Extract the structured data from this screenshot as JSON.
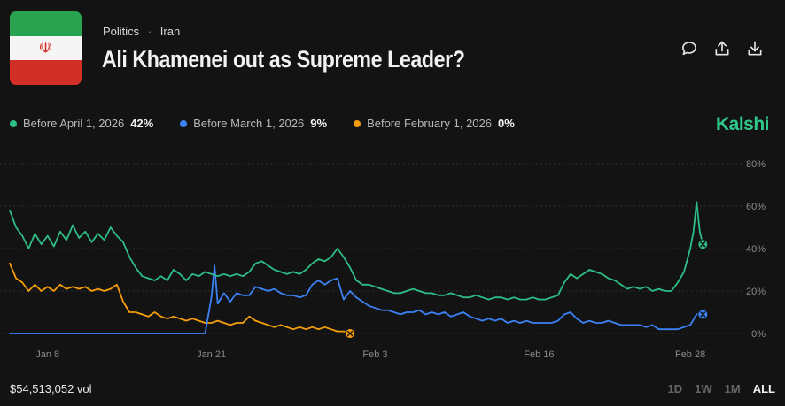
{
  "header": {
    "category": "Politics",
    "subcategory": "Iran",
    "title": "Ali Khamenei out as Supreme Leader?",
    "flag_icon": "iran-flag-icon"
  },
  "actions": [
    {
      "name": "comment-icon"
    },
    {
      "name": "share-icon"
    },
    {
      "name": "download-icon"
    }
  ],
  "legend": [
    {
      "label": "Before April 1, 2026",
      "value": "42%",
      "color": "#2ebd85"
    },
    {
      "label": "Before March 1, 2026",
      "value": "9%",
      "color": "#3b82f6"
    },
    {
      "label": "Before February 1, 2026",
      "value": "0%",
      "color": "#f59e0b"
    }
  ],
  "brand": "Kalshi",
  "footer": {
    "volume": "$54,513,052 vol",
    "ranges": [
      "1D",
      "1W",
      "1M",
      "ALL"
    ],
    "active_range": "ALL"
  },
  "chart_data": {
    "type": "line",
    "xlim": [
      "2026-01-05",
      "2026-03-04"
    ],
    "ylim": [
      0,
      80
    ],
    "y_ticks": [
      0,
      20,
      40,
      60,
      80
    ],
    "y_tick_labels": [
      "0%",
      "20%",
      "40%",
      "60%",
      "80%"
    ],
    "x_ticks": [
      "2026-01-08",
      "2026-01-21",
      "2026-02-03",
      "2026-02-16",
      "2026-02-28"
    ],
    "x_tick_labels": [
      "Jan 8",
      "Jan 21",
      "Feb 3",
      "Feb 16",
      "Feb 28"
    ],
    "grid": "horizontal dotted",
    "series": [
      {
        "name": "Before April 1, 2026",
        "color": "#2ebd85",
        "end_marker": true,
        "points": [
          [
            "2026-01-05T00:00",
            58
          ],
          [
            "2026-01-05T12:00",
            50
          ],
          [
            "2026-01-06T00:00",
            46
          ],
          [
            "2026-01-06T12:00",
            40
          ],
          [
            "2026-01-07T00:00",
            47
          ],
          [
            "2026-01-07T12:00",
            42
          ],
          [
            "2026-01-08T00:00",
            46
          ],
          [
            "2026-01-08T12:00",
            41
          ],
          [
            "2026-01-09T00:00",
            48
          ],
          [
            "2026-01-09T12:00",
            44
          ],
          [
            "2026-01-10T00:00",
            51
          ],
          [
            "2026-01-10T12:00",
            45
          ],
          [
            "2026-01-11T00:00",
            48
          ],
          [
            "2026-01-11T12:00",
            43
          ],
          [
            "2026-01-12T00:00",
            47
          ],
          [
            "2026-01-12T12:00",
            44
          ],
          [
            "2026-01-13T00:00",
            50
          ],
          [
            "2026-01-13T12:00",
            46
          ],
          [
            "2026-01-14T00:00",
            43
          ],
          [
            "2026-01-14T12:00",
            36
          ],
          [
            "2026-01-15T00:00",
            31
          ],
          [
            "2026-01-15T12:00",
            27
          ],
          [
            "2026-01-16T00:00",
            26
          ],
          [
            "2026-01-16T12:00",
            25
          ],
          [
            "2026-01-17T00:00",
            27
          ],
          [
            "2026-01-17T12:00",
            25
          ],
          [
            "2026-01-18T00:00",
            30
          ],
          [
            "2026-01-18T12:00",
            28
          ],
          [
            "2026-01-19T00:00",
            25
          ],
          [
            "2026-01-19T12:00",
            28
          ],
          [
            "2026-01-20T00:00",
            27
          ],
          [
            "2026-01-20T12:00",
            29
          ],
          [
            "2026-01-21T00:00",
            28
          ],
          [
            "2026-01-21T12:00",
            27
          ],
          [
            "2026-01-22T00:00",
            28
          ],
          [
            "2026-01-22T12:00",
            27
          ],
          [
            "2026-01-23T00:00",
            28
          ],
          [
            "2026-01-23T12:00",
            27
          ],
          [
            "2026-01-24T00:00",
            29
          ],
          [
            "2026-01-24T12:00",
            33
          ],
          [
            "2026-01-25T00:00",
            34
          ],
          [
            "2026-01-25T12:00",
            32
          ],
          [
            "2026-01-26T00:00",
            30
          ],
          [
            "2026-01-26T12:00",
            29
          ],
          [
            "2026-01-27T00:00",
            28
          ],
          [
            "2026-01-27T12:00",
            29
          ],
          [
            "2026-01-28T00:00",
            28
          ],
          [
            "2026-01-28T12:00",
            30
          ],
          [
            "2026-01-29T00:00",
            33
          ],
          [
            "2026-01-29T12:00",
            35
          ],
          [
            "2026-01-30T00:00",
            34
          ],
          [
            "2026-01-30T12:00",
            36
          ],
          [
            "2026-01-31T00:00",
            40
          ],
          [
            "2026-01-31T12:00",
            36
          ],
          [
            "2026-02-01T00:00",
            31
          ],
          [
            "2026-02-01T12:00",
            25
          ],
          [
            "2026-02-02T00:00",
            23
          ],
          [
            "2026-02-02T12:00",
            23
          ],
          [
            "2026-02-03T00:00",
            22
          ],
          [
            "2026-02-03T12:00",
            21
          ],
          [
            "2026-02-04T00:00",
            20
          ],
          [
            "2026-02-04T12:00",
            19
          ],
          [
            "2026-02-05T00:00",
            19
          ],
          [
            "2026-02-05T12:00",
            20
          ],
          [
            "2026-02-06T00:00",
            21
          ],
          [
            "2026-02-06T12:00",
            20
          ],
          [
            "2026-02-07T00:00",
            19
          ],
          [
            "2026-02-07T12:00",
            19
          ],
          [
            "2026-02-08T00:00",
            18
          ],
          [
            "2026-02-08T12:00",
            18
          ],
          [
            "2026-02-09T00:00",
            19
          ],
          [
            "2026-02-09T12:00",
            18
          ],
          [
            "2026-02-10T00:00",
            17
          ],
          [
            "2026-02-10T12:00",
            17
          ],
          [
            "2026-02-11T00:00",
            18
          ],
          [
            "2026-02-11T12:00",
            17
          ],
          [
            "2026-02-12T00:00",
            16
          ],
          [
            "2026-02-12T12:00",
            17
          ],
          [
            "2026-02-13T00:00",
            17
          ],
          [
            "2026-02-13T12:00",
            16
          ],
          [
            "2026-02-14T00:00",
            17
          ],
          [
            "2026-02-14T12:00",
            16
          ],
          [
            "2026-02-15T00:00",
            16
          ],
          [
            "2026-02-15T12:00",
            17
          ],
          [
            "2026-02-16T00:00",
            16
          ],
          [
            "2026-02-16T12:00",
            16
          ],
          [
            "2026-02-17T00:00",
            17
          ],
          [
            "2026-02-17T12:00",
            18
          ],
          [
            "2026-02-18T00:00",
            24
          ],
          [
            "2026-02-18T12:00",
            28
          ],
          [
            "2026-02-19T00:00",
            26
          ],
          [
            "2026-02-19T12:00",
            28
          ],
          [
            "2026-02-20T00:00",
            30
          ],
          [
            "2026-02-20T12:00",
            29
          ],
          [
            "2026-02-21T00:00",
            28
          ],
          [
            "2026-02-21T12:00",
            26
          ],
          [
            "2026-02-22T00:00",
            25
          ],
          [
            "2026-02-22T12:00",
            23
          ],
          [
            "2026-02-23T00:00",
            21
          ],
          [
            "2026-02-23T12:00",
            22
          ],
          [
            "2026-02-24T00:00",
            21
          ],
          [
            "2026-02-24T12:00",
            22
          ],
          [
            "2026-02-25T00:00",
            20
          ],
          [
            "2026-02-25T12:00",
            21
          ],
          [
            "2026-02-26T00:00",
            20
          ],
          [
            "2026-02-26T12:00",
            20
          ],
          [
            "2026-02-27T00:00",
            24
          ],
          [
            "2026-02-27T12:00",
            29
          ],
          [
            "2026-02-28T00:00",
            40
          ],
          [
            "2026-02-28T06:00",
            48
          ],
          [
            "2026-02-28T12:00",
            62
          ],
          [
            "2026-02-28T18:00",
            48
          ],
          [
            "2026-03-01T00:00",
            42
          ]
        ]
      },
      {
        "name": "Before March 1, 2026",
        "color": "#3b82f6",
        "end_marker": true,
        "points": [
          [
            "2026-01-05T00:00",
            0
          ],
          [
            "2026-01-20T12:00",
            0
          ],
          [
            "2026-01-21T00:00",
            17
          ],
          [
            "2026-01-21T06:00",
            32
          ],
          [
            "2026-01-21T12:00",
            14
          ],
          [
            "2026-01-22T00:00",
            19
          ],
          [
            "2026-01-22T12:00",
            15
          ],
          [
            "2026-01-23T00:00",
            19
          ],
          [
            "2026-01-23T12:00",
            18
          ],
          [
            "2026-01-24T00:00",
            18
          ],
          [
            "2026-01-24T12:00",
            22
          ],
          [
            "2026-01-25T00:00",
            21
          ],
          [
            "2026-01-25T12:00",
            20
          ],
          [
            "2026-01-26T00:00",
            21
          ],
          [
            "2026-01-26T12:00",
            19
          ],
          [
            "2026-01-27T00:00",
            18
          ],
          [
            "2026-01-27T12:00",
            18
          ],
          [
            "2026-01-28T00:00",
            17
          ],
          [
            "2026-01-28T12:00",
            18
          ],
          [
            "2026-01-29T00:00",
            23
          ],
          [
            "2026-01-29T12:00",
            25
          ],
          [
            "2026-01-30T00:00",
            23
          ],
          [
            "2026-01-30T12:00",
            25
          ],
          [
            "2026-01-31T00:00",
            26
          ],
          [
            "2026-01-31T12:00",
            16
          ],
          [
            "2026-02-01T00:00",
            20
          ],
          [
            "2026-02-01T12:00",
            17
          ],
          [
            "2026-02-02T00:00",
            15
          ],
          [
            "2026-02-02T12:00",
            13
          ],
          [
            "2026-02-03T00:00",
            12
          ],
          [
            "2026-02-03T12:00",
            11
          ],
          [
            "2026-02-04T00:00",
            11
          ],
          [
            "2026-02-04T12:00",
            10
          ],
          [
            "2026-02-05T00:00",
            9
          ],
          [
            "2026-02-05T12:00",
            10
          ],
          [
            "2026-02-06T00:00",
            10
          ],
          [
            "2026-02-06T12:00",
            11
          ],
          [
            "2026-02-07T00:00",
            9
          ],
          [
            "2026-02-07T12:00",
            10
          ],
          [
            "2026-02-08T00:00",
            9
          ],
          [
            "2026-02-08T12:00",
            10
          ],
          [
            "2026-02-09T00:00",
            8
          ],
          [
            "2026-02-09T12:00",
            9
          ],
          [
            "2026-02-10T00:00",
            10
          ],
          [
            "2026-02-10T12:00",
            8
          ],
          [
            "2026-02-11T00:00",
            7
          ],
          [
            "2026-02-11T12:00",
            6
          ],
          [
            "2026-02-12T00:00",
            7
          ],
          [
            "2026-02-12T12:00",
            6
          ],
          [
            "2026-02-13T00:00",
            7
          ],
          [
            "2026-02-13T12:00",
            5
          ],
          [
            "2026-02-14T00:00",
            6
          ],
          [
            "2026-02-14T12:00",
            5
          ],
          [
            "2026-02-15T00:00",
            6
          ],
          [
            "2026-02-15T12:00",
            5
          ],
          [
            "2026-02-16T00:00",
            5
          ],
          [
            "2026-02-16T12:00",
            5
          ],
          [
            "2026-02-17T00:00",
            5
          ],
          [
            "2026-02-17T12:00",
            6
          ],
          [
            "2026-02-18T00:00",
            9
          ],
          [
            "2026-02-18T12:00",
            10
          ],
          [
            "2026-02-19T00:00",
            7
          ],
          [
            "2026-02-19T12:00",
            5
          ],
          [
            "2026-02-20T00:00",
            6
          ],
          [
            "2026-02-20T12:00",
            5
          ],
          [
            "2026-02-21T00:00",
            5
          ],
          [
            "2026-02-21T12:00",
            6
          ],
          [
            "2026-02-22T00:00",
            5
          ],
          [
            "2026-02-22T12:00",
            4
          ],
          [
            "2026-02-23T00:00",
            4
          ],
          [
            "2026-02-23T12:00",
            4
          ],
          [
            "2026-02-24T00:00",
            4
          ],
          [
            "2026-02-24T12:00",
            3
          ],
          [
            "2026-02-25T00:00",
            4
          ],
          [
            "2026-02-25T12:00",
            2
          ],
          [
            "2026-02-26T00:00",
            2
          ],
          [
            "2026-02-26T12:00",
            2
          ],
          [
            "2026-02-27T00:00",
            2
          ],
          [
            "2026-02-27T12:00",
            3
          ],
          [
            "2026-02-28T00:00",
            4
          ],
          [
            "2026-02-28T12:00",
            9
          ],
          [
            "2026-03-01T00:00",
            9
          ]
        ]
      },
      {
        "name": "Before February 1, 2026",
        "color": "#f59e0b",
        "end_marker": true,
        "points": [
          [
            "2026-01-05T00:00",
            33
          ],
          [
            "2026-01-05T12:00",
            26
          ],
          [
            "2026-01-06T00:00",
            24
          ],
          [
            "2026-01-06T12:00",
            20
          ],
          [
            "2026-01-07T00:00",
            23
          ],
          [
            "2026-01-07T12:00",
            20
          ],
          [
            "2026-01-08T00:00",
            22
          ],
          [
            "2026-01-08T12:00",
            20
          ],
          [
            "2026-01-09T00:00",
            23
          ],
          [
            "2026-01-09T12:00",
            21
          ],
          [
            "2026-01-10T00:00",
            22
          ],
          [
            "2026-01-10T12:00",
            21
          ],
          [
            "2026-01-11T00:00",
            22
          ],
          [
            "2026-01-11T12:00",
            20
          ],
          [
            "2026-01-12T00:00",
            21
          ],
          [
            "2026-01-12T12:00",
            20
          ],
          [
            "2026-01-13T00:00",
            21
          ],
          [
            "2026-01-13T12:00",
            23
          ],
          [
            "2026-01-14T00:00",
            15
          ],
          [
            "2026-01-14T12:00",
            10
          ],
          [
            "2026-01-15T00:00",
            10
          ],
          [
            "2026-01-15T12:00",
            9
          ],
          [
            "2026-01-16T00:00",
            8
          ],
          [
            "2026-01-16T12:00",
            10
          ],
          [
            "2026-01-17T00:00",
            8
          ],
          [
            "2026-01-17T12:00",
            7
          ],
          [
            "2026-01-18T00:00",
            8
          ],
          [
            "2026-01-18T12:00",
            7
          ],
          [
            "2026-01-19T00:00",
            6
          ],
          [
            "2026-01-19T12:00",
            7
          ],
          [
            "2026-01-20T00:00",
            6
          ],
          [
            "2026-01-20T12:00",
            5
          ],
          [
            "2026-01-21T00:00",
            5
          ],
          [
            "2026-01-21T12:00",
            6
          ],
          [
            "2026-01-22T00:00",
            5
          ],
          [
            "2026-01-22T12:00",
            4
          ],
          [
            "2026-01-23T00:00",
            5
          ],
          [
            "2026-01-23T12:00",
            5
          ],
          [
            "2026-01-24T00:00",
            8
          ],
          [
            "2026-01-24T12:00",
            6
          ],
          [
            "2026-01-25T00:00",
            5
          ],
          [
            "2026-01-25T12:00",
            4
          ],
          [
            "2026-01-26T00:00",
            3
          ],
          [
            "2026-01-26T12:00",
            4
          ],
          [
            "2026-01-27T00:00",
            3
          ],
          [
            "2026-01-27T12:00",
            2
          ],
          [
            "2026-01-28T00:00",
            3
          ],
          [
            "2026-01-28T12:00",
            2
          ],
          [
            "2026-01-29T00:00",
            3
          ],
          [
            "2026-01-29T12:00",
            2
          ],
          [
            "2026-01-30T00:00",
            3
          ],
          [
            "2026-01-30T12:00",
            2
          ],
          [
            "2026-01-31T00:00",
            1
          ],
          [
            "2026-01-31T12:00",
            1
          ],
          [
            "2026-02-01T00:00",
            0
          ]
        ]
      }
    ]
  }
}
